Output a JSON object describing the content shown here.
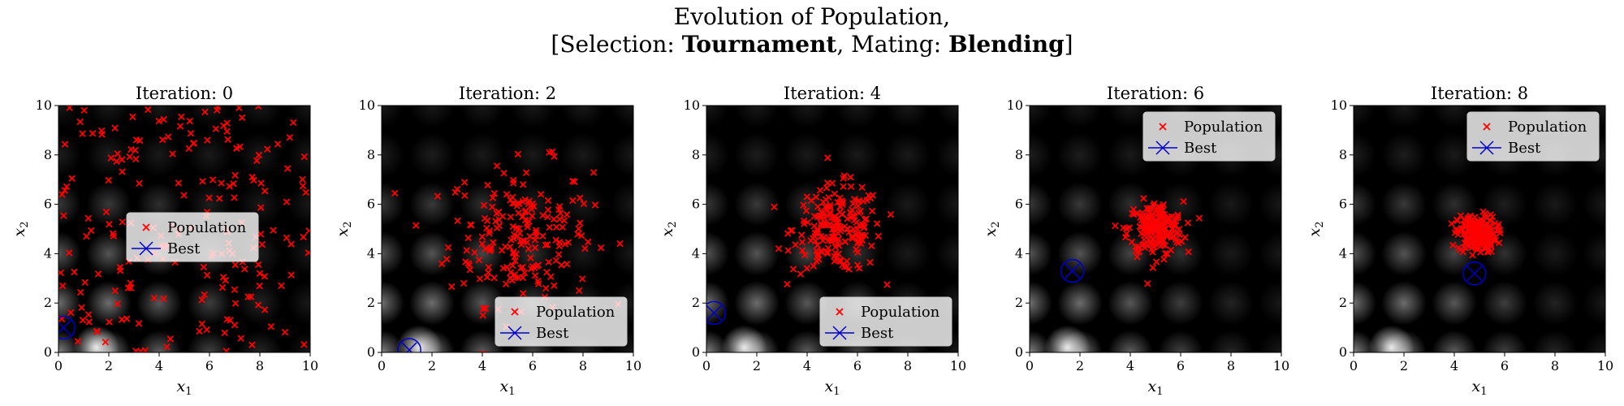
{
  "figure": {
    "title_line1": "Evolution of Population,",
    "title_prefix": "[Selection: ",
    "selection": "Tournament",
    "title_middle": ", Mating: ",
    "mating": "Blending",
    "title_suffix": "]"
  },
  "colors": {
    "population": "#ff0000",
    "best": "#0000cc"
  },
  "chart_data": [
    {
      "type": "scatter",
      "title": "Iteration: 0",
      "xlabel": "x1",
      "ylabel": "x2",
      "xlim": [
        0,
        10
      ],
      "ylim": [
        0,
        10
      ],
      "xticks": [
        0,
        2,
        4,
        6,
        8,
        10
      ],
      "yticks": [
        0,
        2,
        4,
        6,
        8,
        10
      ],
      "legend": {
        "placement": "center",
        "population_label": "Population",
        "best_label": "Best"
      },
      "best": [
        0.2,
        1.0
      ],
      "population": {
        "center": [
          5,
          5
        ],
        "spread": 5,
        "distribution": "uniform",
        "count": 200
      }
    },
    {
      "type": "scatter",
      "title": "Iteration: 2",
      "xlabel": "x1",
      "ylabel": "x2",
      "xlim": [
        0,
        10
      ],
      "ylim": [
        0,
        10
      ],
      "xticks": [
        0,
        2,
        4,
        6,
        8,
        10
      ],
      "yticks": [
        0,
        2,
        4,
        6,
        8,
        10
      ],
      "legend": {
        "placement": "lower right",
        "population_label": "Population",
        "best_label": "Best"
      },
      "best": [
        1.1,
        0.1
      ],
      "population": {
        "center": [
          5.5,
          4.8
        ],
        "spread": 2.6,
        "distribution": "normal",
        "count": 200
      }
    },
    {
      "type": "scatter",
      "title": "Iteration: 4",
      "xlabel": "x1",
      "ylabel": "x2",
      "xlim": [
        0,
        10
      ],
      "ylim": [
        0,
        10
      ],
      "xticks": [
        0,
        2,
        4,
        6,
        8,
        10
      ],
      "yticks": [
        0,
        2,
        4,
        6,
        8,
        10
      ],
      "legend": {
        "placement": "lower right",
        "population_label": "Population",
        "best_label": "Best"
      },
      "best": [
        0.3,
        1.6
      ],
      "population": {
        "center": [
          5.2,
          5.0
        ],
        "spread": 1.6,
        "distribution": "normal",
        "count": 200
      }
    },
    {
      "type": "scatter",
      "title": "Iteration: 6",
      "xlabel": "x1",
      "ylabel": "x2",
      "xlim": [
        0,
        10
      ],
      "ylim": [
        0,
        10
      ],
      "xticks": [
        0,
        2,
        4,
        6,
        8,
        10
      ],
      "yticks": [
        0,
        2,
        4,
        6,
        8,
        10
      ],
      "legend": {
        "placement": "upper right",
        "population_label": "Population",
        "best_label": "Best"
      },
      "best": [
        1.7,
        3.3
      ],
      "population": {
        "center": [
          5.0,
          5.0
        ],
        "spread": 1.0,
        "distribution": "normal",
        "count": 200
      }
    },
    {
      "type": "scatter",
      "title": "Iteration: 8",
      "xlabel": "x1",
      "ylabel": "x2",
      "xlim": [
        0,
        10
      ],
      "ylim": [
        0,
        10
      ],
      "xticks": [
        0,
        2,
        4,
        6,
        8,
        10
      ],
      "yticks": [
        0,
        2,
        4,
        6,
        8,
        10
      ],
      "legend": {
        "placement": "upper right",
        "population_label": "Population",
        "best_label": "Best"
      },
      "best": [
        4.8,
        3.2
      ],
      "population": {
        "center": [
          4.9,
          4.8
        ],
        "spread": 0.7,
        "distribution": "normal",
        "count": 200
      }
    }
  ]
}
